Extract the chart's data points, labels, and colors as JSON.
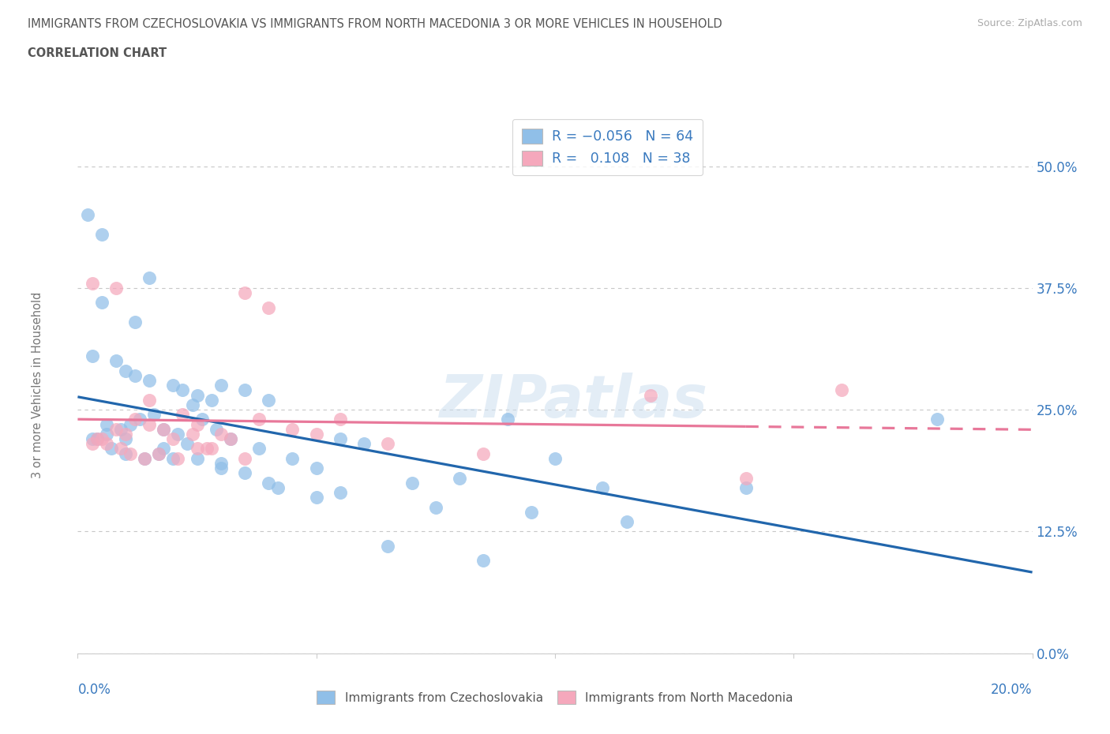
{
  "title_line1": "IMMIGRANTS FROM CZECHOSLOVAKIA VS IMMIGRANTS FROM NORTH MACEDONIA 3 OR MORE VEHICLES IN HOUSEHOLD",
  "title_line2": "CORRELATION CHART",
  "source": "Source: ZipAtlas.com",
  "ylabel_label": "3 or more Vehicles in Household",
  "legend1_label": "Immigrants from Czechoslovakia",
  "legend2_label": "Immigrants from North Macedonia",
  "r1": -0.056,
  "n1": 64,
  "r2": 0.108,
  "n2": 38,
  "color_blue": "#90bfe8",
  "color_pink": "#f5a8bc",
  "color_blue_line": "#2166ac",
  "color_pink_line": "#e8789a",
  "color_text_blue": "#3a7abf",
  "color_label": "#777777",
  "xlim": [
    0.0,
    20.0
  ],
  "ylim": [
    0.0,
    55.0
  ],
  "yticks": [
    0.0,
    12.5,
    25.0,
    37.5,
    50.0
  ],
  "ytick_labels": [
    "0.0%",
    "12.5%",
    "25.0%",
    "37.5%",
    "50.0%"
  ],
  "watermark": "ZIPatlas",
  "czech_x": [
    0.5,
    1.5,
    1.2,
    0.3,
    0.8,
    1.0,
    1.2,
    1.5,
    2.0,
    2.2,
    2.5,
    2.8,
    3.0,
    3.5,
    4.0,
    0.6,
    0.9,
    1.1,
    1.3,
    1.6,
    1.8,
    2.1,
    2.4,
    2.6,
    2.9,
    3.2,
    3.8,
    4.5,
    5.0,
    5.5,
    6.0,
    7.0,
    8.0,
    9.0,
    10.0,
    11.0,
    14.0,
    18.0,
    0.4,
    0.7,
    1.0,
    1.4,
    1.7,
    2.0,
    2.3,
    3.0,
    3.5,
    4.2,
    5.5,
    7.5,
    9.5,
    11.5,
    0.2,
    0.5,
    0.3,
    0.6,
    1.0,
    1.8,
    2.5,
    3.0,
    4.0,
    5.0,
    6.5,
    8.5
  ],
  "czech_y": [
    43.0,
    38.5,
    34.0,
    30.5,
    30.0,
    29.0,
    28.5,
    28.0,
    27.5,
    27.0,
    26.5,
    26.0,
    27.5,
    27.0,
    26.0,
    23.5,
    23.0,
    23.5,
    24.0,
    24.5,
    23.0,
    22.5,
    25.5,
    24.0,
    23.0,
    22.0,
    21.0,
    20.0,
    19.0,
    22.0,
    21.5,
    17.5,
    18.0,
    24.0,
    20.0,
    17.0,
    17.0,
    24.0,
    22.0,
    21.0,
    20.5,
    20.0,
    20.5,
    20.0,
    21.5,
    19.0,
    18.5,
    17.0,
    16.5,
    15.0,
    14.5,
    13.5,
    45.0,
    36.0,
    22.0,
    22.5,
    22.0,
    21.0,
    20.0,
    19.5,
    17.5,
    16.0,
    11.0,
    9.5
  ],
  "mac_x": [
    0.3,
    0.5,
    0.8,
    1.0,
    1.2,
    1.5,
    1.8,
    2.0,
    2.2,
    2.5,
    2.8,
    3.0,
    3.5,
    4.0,
    4.5,
    5.5,
    0.4,
    0.6,
    0.9,
    1.1,
    1.4,
    1.7,
    2.1,
    2.4,
    2.7,
    3.2,
    3.8,
    5.0,
    6.5,
    8.5,
    12.0,
    14.0,
    16.0,
    0.3,
    0.8,
    1.5,
    2.5,
    3.5
  ],
  "mac_y": [
    21.5,
    22.0,
    23.0,
    22.5,
    24.0,
    23.5,
    23.0,
    22.0,
    24.5,
    23.5,
    21.0,
    22.5,
    37.0,
    35.5,
    23.0,
    24.0,
    22.0,
    21.5,
    21.0,
    20.5,
    20.0,
    20.5,
    20.0,
    22.5,
    21.0,
    22.0,
    24.0,
    22.5,
    21.5,
    20.5,
    26.5,
    18.0,
    27.0,
    38.0,
    37.5,
    26.0,
    21.0,
    20.0
  ]
}
